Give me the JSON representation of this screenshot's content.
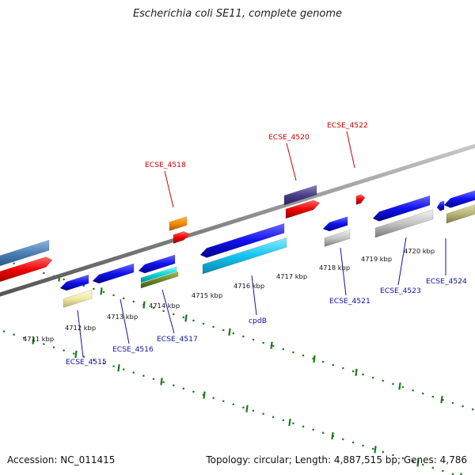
{
  "title": "Escherichia coli SE11, complete genome",
  "footer": {
    "accession": "Accession: NC_011415",
    "summary": "Topology: circular; Length: 4,887,515 bp; Genes: 4,786"
  },
  "colors": {
    "backbone": "#8a8a8a",
    "ruler": "#1a7a1a",
    "label_blue": "#1010aa",
    "label_red": "#cc0000"
  },
  "ticks": [
    {
      "label": "4711 kbp"
    },
    {
      "label": "4712 kbp"
    },
    {
      "label": "4713 kbp"
    },
    {
      "label": "4714 kbp"
    },
    {
      "label": "4715 kbp"
    },
    {
      "label": "4716 kbp"
    },
    {
      "label": "4717 kbp"
    },
    {
      "label": "4718 kbp"
    },
    {
      "label": "4719 kbp"
    },
    {
      "label": "4720 kbp"
    }
  ],
  "gene_labels": [
    {
      "name": "ECSE_4515",
      "color": "blue"
    },
    {
      "name": "ECSE_4516",
      "color": "blue"
    },
    {
      "name": "ECSE_4517",
      "color": "blue"
    },
    {
      "name": "cpdB",
      "color": "blue"
    },
    {
      "name": "ECSE_4521",
      "color": "blue"
    },
    {
      "name": "ECSE_4523",
      "color": "blue"
    },
    {
      "name": "ECSE_4524",
      "color": "blue"
    },
    {
      "name": "ECSE_4518",
      "color": "red"
    },
    {
      "name": "ECSE_4520",
      "color": "red"
    },
    {
      "name": "ECSE_4522",
      "color": "red"
    }
  ]
}
